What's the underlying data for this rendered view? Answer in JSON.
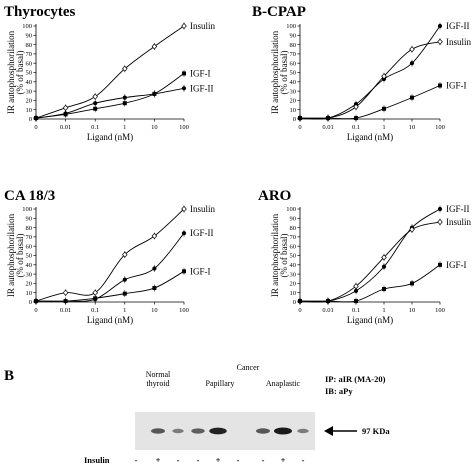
{
  "panel_b": {
    "label": "B",
    "groups": {
      "normal": [
        "Normal",
        "thyroid"
      ],
      "cancer": "Cancer",
      "papillary": "Papillary",
      "anaplastic": "Anaplastic"
    },
    "ip_text": "IP: aIR (MA-20)",
    "ib_text": "IB: aPy",
    "band_label": "97 KDa",
    "row_label": "Insulin",
    "lanes": [
      "-",
      "+",
      "-",
      "-",
      "+",
      "-",
      "-",
      "+",
      "-"
    ],
    "band_intensity": [
      0.05,
      0.6,
      0.35,
      0.55,
      0.95,
      0.08,
      0.6,
      1.0,
      0.35
    ]
  },
  "colors": {
    "line": "#000000",
    "blot_bg": "#e4e4e4",
    "band": "#1a1a1a"
  },
  "chart_data": [
    {
      "type": "line",
      "title": "Thyrocytes",
      "xlabel": "Ligand (nM)",
      "ylabel": [
        "IR autophosphorilation",
        "(% of basal)"
      ],
      "x_scale": "log",
      "x": [
        0,
        0.01,
        0.1,
        1,
        10,
        100
      ],
      "x_tick_labels": [
        "0",
        "0.01",
        "0.1",
        "1",
        "10",
        "100"
      ],
      "ylim": [
        0,
        100
      ],
      "y_ticks": [
        0,
        10,
        20,
        30,
        40,
        50,
        60,
        70,
        80,
        90,
        100
      ],
      "series": [
        {
          "name": "Insulin",
          "marker": "diamond-open",
          "values": [
            1,
            12,
            24,
            54,
            78,
            100
          ],
          "end_value": 100
        },
        {
          "name": "IGF-I",
          "marker": "square-filled",
          "values": [
            1,
            5,
            11,
            17,
            27,
            49
          ],
          "end_value": 49
        },
        {
          "name": "IGF-II",
          "marker": "circle-filled",
          "values": [
            1,
            6,
            17,
            23,
            27,
            33
          ],
          "end_value": 33
        }
      ]
    },
    {
      "type": "line",
      "title": "B-CPAP",
      "xlabel": "Ligand (nM)",
      "ylabel": [
        "IR autophosphorilation",
        "(% of basal)"
      ],
      "x_scale": "log",
      "x": [
        0,
        0.01,
        0.1,
        1,
        10,
        100
      ],
      "x_tick_labels": [
        "0",
        "0.01",
        "0.1",
        "1",
        "10",
        "100"
      ],
      "ylim": [
        0,
        100
      ],
      "y_ticks": [
        0,
        10,
        20,
        30,
        40,
        50,
        60,
        70,
        80,
        90,
        100
      ],
      "series": [
        {
          "name": "IGF-II",
          "marker": "circle-filled",
          "values": [
            1,
            1,
            16,
            43,
            60,
            100
          ],
          "end_value": 100
        },
        {
          "name": "Insulin",
          "marker": "diamond-open",
          "values": [
            1,
            1,
            13,
            46,
            75,
            83
          ],
          "end_value": 83
        },
        {
          "name": "IGF-I",
          "marker": "square-filled",
          "values": [
            1,
            1,
            1,
            11,
            23,
            36
          ],
          "end_value": 36
        }
      ]
    },
    {
      "type": "line",
      "title": "CA 18/3",
      "xlabel": "Ligand (nM)",
      "ylabel": [
        "IR autophosphorilation",
        "(% of basal)"
      ],
      "x_scale": "log",
      "x": [
        0,
        0.01,
        0.1,
        1,
        10,
        100
      ],
      "x_tick_labels": [
        "0",
        "0.01",
        "0.1",
        "1",
        "10",
        "100"
      ],
      "ylim": [
        0,
        100
      ],
      "y_ticks": [
        0,
        10,
        20,
        30,
        40,
        50,
        60,
        70,
        80,
        90,
        100
      ],
      "series": [
        {
          "name": "Insulin",
          "marker": "diamond-open",
          "values": [
            1,
            10,
            10,
            51,
            71,
            100
          ],
          "end_value": 100
        },
        {
          "name": "IGF-II",
          "marker": "circle-filled",
          "values": [
            1,
            1,
            3,
            24,
            36,
            74
          ],
          "end_value": 74
        },
        {
          "name": "IGF-I",
          "marker": "square-filled",
          "values": [
            1,
            1,
            4,
            9,
            15,
            33
          ],
          "end_value": 33
        }
      ]
    },
    {
      "type": "line",
      "title": "ARO",
      "xlabel": "Ligand (nM)",
      "ylabel": [
        "IR autophosphorilation",
        "(% of basal)"
      ],
      "x_scale": "log",
      "x": [
        0,
        0.01,
        0.1,
        1,
        10,
        100
      ],
      "x_tick_labels": [
        "0",
        "0.01",
        "0.1",
        "1",
        "10",
        "100"
      ],
      "ylim": [
        0,
        100
      ],
      "y_ticks": [
        0,
        10,
        20,
        30,
        40,
        50,
        60,
        70,
        80,
        90,
        100
      ],
      "series": [
        {
          "name": "IGF-II",
          "marker": "circle-filled",
          "values": [
            1,
            1,
            12,
            38,
            80,
            100
          ],
          "end_value": 100
        },
        {
          "name": "Insulin",
          "marker": "diamond-open",
          "values": [
            1,
            1,
            17,
            48,
            78,
            86
          ],
          "end_value": 86
        },
        {
          "name": "IGF-I",
          "marker": "square-filled",
          "values": [
            1,
            1,
            1,
            14,
            20,
            40
          ],
          "end_value": 40
        }
      ]
    }
  ]
}
